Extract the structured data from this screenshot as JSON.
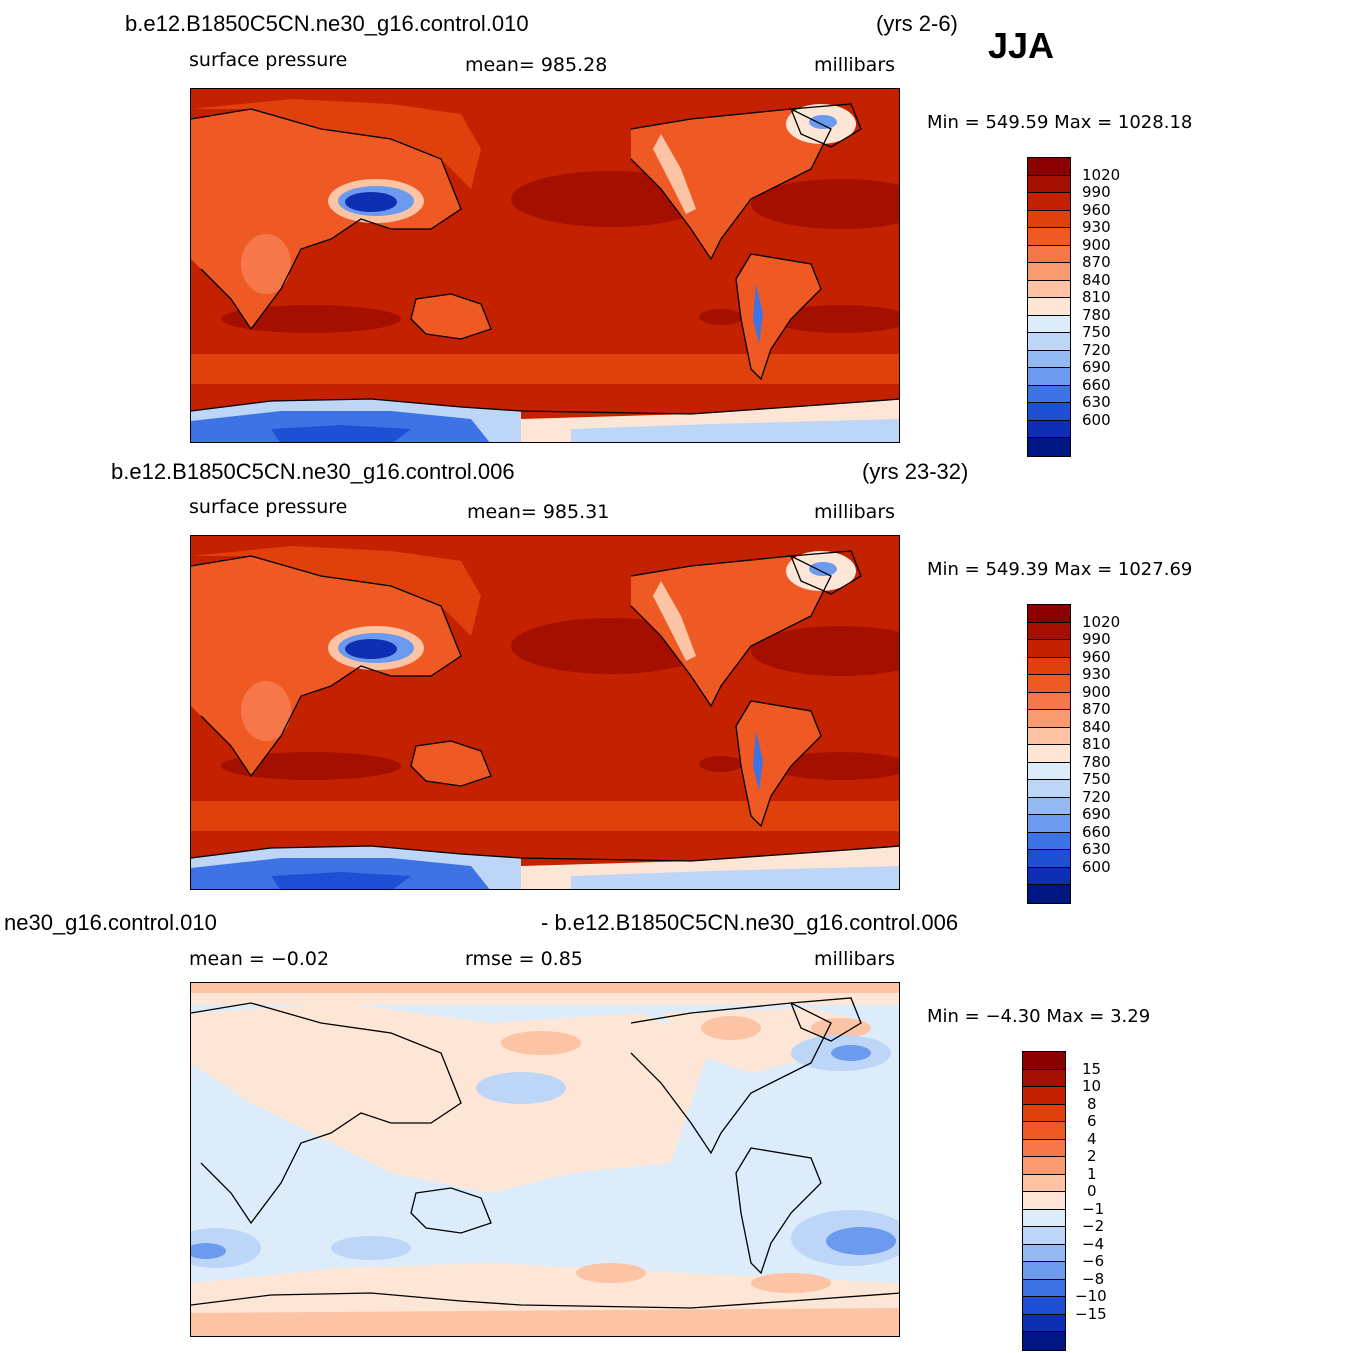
{
  "season": "JJA",
  "panels": [
    {
      "case": "b.e12.B1850C5CN.ne30_g16.control.010",
      "years": "(yrs 2-6)",
      "variable": "surface pressure",
      "mean": "mean=  985.28",
      "units": "millibars",
      "minmax": "Min  =  549.59  Max  =  1028.18"
    },
    {
      "case": "b.e12.B1850C5CN.ne30_g16.control.006",
      "years": "(yrs 23-32)",
      "variable": "surface pressure",
      "mean": "mean=  985.31",
      "units": "millibars",
      "minmax": "Min  =  549.39  Max  =  1027.69"
    },
    {
      "case": "ne30_g16.control.010",
      "case2": "- b.e12.B1850C5CN.ne30_g16.control.006",
      "mean": "mean  =    −0.02",
      "rmse": "rmse  =      0.85",
      "units": "millibars",
      "minmax": "Min  =    −4.30  Max  =      3.29"
    }
  ],
  "colorbar_abs": {
    "labels": [
      "1020",
      "990",
      "960",
      "930",
      "900",
      "870",
      "840",
      "810",
      "780",
      "750",
      "720",
      "690",
      "660",
      "630",
      "600"
    ],
    "colors": [
      "#8b0000",
      "#a50f00",
      "#c32100",
      "#e0400c",
      "#ef5a24",
      "#f5774a",
      "#f99a70",
      "#fcc3a5",
      "#fde6d6",
      "#ddecfb",
      "#bdd6f7",
      "#95baf3",
      "#6b9aee",
      "#3d73e4",
      "#1f4fd5",
      "#0e2fb4",
      "#001683"
    ]
  },
  "colorbar_diff": {
    "labels": [
      "15",
      "10",
      "8",
      "6",
      "4",
      "2",
      "1",
      "0",
      "−1",
      "−2",
      "−4",
      "−6",
      "−8",
      "−10",
      "−15"
    ],
    "colors": [
      "#8b0000",
      "#a50f00",
      "#c32100",
      "#e0400c",
      "#ef5a24",
      "#f5774a",
      "#f99a70",
      "#fcc3a5",
      "#fde6d6",
      "#ddecfb",
      "#bdd6f7",
      "#95baf3",
      "#6b9aee",
      "#3d73e4",
      "#1f4fd5",
      "#0e2fb4",
      "#001683"
    ]
  }
}
